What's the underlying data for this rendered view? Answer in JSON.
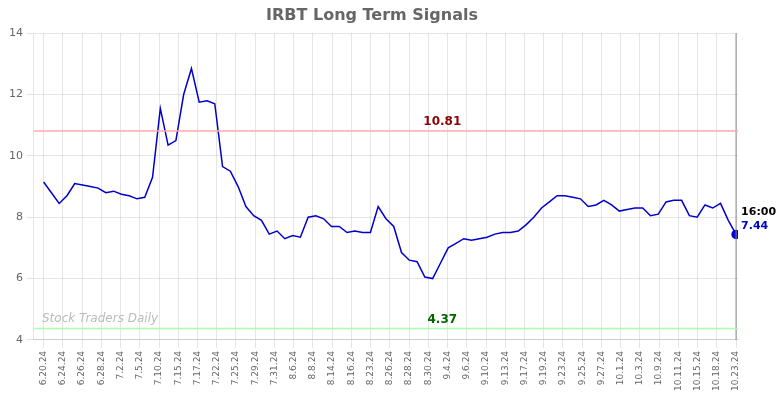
{
  "chart_data": {
    "type": "line",
    "title": "IRBT Long Term Signals",
    "x": [
      0,
      0.4045,
      0.809,
      1.2135,
      1.618,
      2.0225,
      2.427,
      2.8315,
      3.236,
      3.6404,
      4.0449,
      4.4494,
      4.8539,
      5.2584,
      5.6629,
      6.0674,
      6.4719,
      6.8764,
      7.2809,
      7.6854,
      8.0899,
      8.4944,
      8.8989,
      9.3034,
      9.7079,
      10.1124,
      10.5169,
      10.9213,
      11.3258,
      11.7303,
      12.1348,
      12.5393,
      12.9438,
      13.3483,
      13.7528,
      14.1573,
      14.5618,
      14.9663,
      15.3708,
      15.7753,
      16.1798,
      16.5843,
      16.9888,
      17.3933,
      17.7978,
      18.2022,
      18.6067,
      19.0112,
      19.4157,
      19.8202,
      20.2247,
      20.6292,
      21.0337,
      21.4382,
      21.8427,
      22.2472,
      22.6517,
      23.0562,
      23.4607,
      23.8652,
      24.2697,
      24.6742,
      25.0787,
      25.4831,
      25.8876,
      26.2921,
      26.6966,
      27.1011,
      27.5056,
      27.9101,
      28.3146,
      28.7191,
      29.1236,
      29.5281,
      29.9326,
      30.3371,
      30.7416,
      31.1461,
      31.5506,
      31.9551,
      32.3596,
      32.764,
      33.1685,
      33.573,
      33.9775,
      34.382,
      34.7865,
      35.191,
      35.5955,
      36
    ],
    "values": [
      9.15,
      8.8,
      8.45,
      8.7,
      9.1,
      9.05,
      9.0,
      8.95,
      8.8,
      8.85,
      8.75,
      8.7,
      8.6,
      8.65,
      9.3,
      11.55,
      10.35,
      10.5,
      12.0,
      12.85,
      11.75,
      11.8,
      11.7,
      9.65,
      9.5,
      9.0,
      8.35,
      8.05,
      7.9,
      7.45,
      7.55,
      7.3,
      7.4,
      7.35,
      8.0,
      8.05,
      7.95,
      7.7,
      7.7,
      7.5,
      7.55,
      7.5,
      7.5,
      8.35,
      7.95,
      7.7,
      6.85,
      6.6,
      6.55,
      6.05,
      6.0,
      6.5,
      7.0,
      7.15,
      7.3,
      7.25,
      7.3,
      7.35,
      7.45,
      7.5,
      7.5,
      7.55,
      7.75,
      8.0,
      8.3,
      8.5,
      8.7,
      8.7,
      8.65,
      8.6,
      8.35,
      8.4,
      8.55,
      8.4,
      8.2,
      8.25,
      8.3,
      8.3,
      8.05,
      8.1,
      8.5,
      8.55,
      8.55,
      8.05,
      8.0,
      8.4,
      8.3,
      8.45,
      7.9,
      7.44
    ],
    "color": "#0000cc",
    "xlim": [
      -0.5,
      36.1
    ],
    "xticks": [
      {
        "value": 0,
        "label": "6.20.24"
      },
      {
        "value": 1,
        "label": "6.24.24"
      },
      {
        "value": 2,
        "label": "6.26.24"
      },
      {
        "value": 3,
        "label": "6.28.24"
      },
      {
        "value": 4,
        "label": "7.2.24"
      },
      {
        "value": 5,
        "label": "7.5.24"
      },
      {
        "value": 6,
        "label": "7.10.24"
      },
      {
        "value": 7,
        "label": "7.15.24"
      },
      {
        "value": 8,
        "label": "7.17.24"
      },
      {
        "value": 9,
        "label": "7.22.24"
      },
      {
        "value": 10,
        "label": "7.25.24"
      },
      {
        "value": 11,
        "label": "7.29.24"
      },
      {
        "value": 12,
        "label": "7.31.24"
      },
      {
        "value": 13,
        "label": "8.6.24"
      },
      {
        "value": 14,
        "label": "8.8.24"
      },
      {
        "value": 15,
        "label": "8.14.24"
      },
      {
        "value": 16,
        "label": "8.16.24"
      },
      {
        "value": 17,
        "label": "8.23.24"
      },
      {
        "value": 18,
        "label": "8.26.24"
      },
      {
        "value": 19,
        "label": "8.28.24"
      },
      {
        "value": 20,
        "label": "8.30.24"
      },
      {
        "value": 21,
        "label": "9.4.24"
      },
      {
        "value": 22,
        "label": "9.6.24"
      },
      {
        "value": 23,
        "label": "9.10.24"
      },
      {
        "value": 24,
        "label": "9.13.24"
      },
      {
        "value": 25,
        "label": "9.17.24"
      },
      {
        "value": 26,
        "label": "9.19.24"
      },
      {
        "value": 27,
        "label": "9.23.24"
      },
      {
        "value": 28,
        "label": "9.25.24"
      },
      {
        "value": 29,
        "label": "9.27.24"
      },
      {
        "value": 30,
        "label": "10.1.24"
      },
      {
        "value": 31,
        "label": "10.3.24"
      },
      {
        "value": 32,
        "label": "10.9.24"
      },
      {
        "value": 33,
        "label": "10.11.24"
      },
      {
        "value": 34,
        "label": "10.15.24"
      },
      {
        "value": 35,
        "label": "10.18.24"
      },
      {
        "value": 36,
        "label": "10.23.24"
      }
    ],
    "ylim": [
      4,
      14
    ],
    "yticks": [
      4,
      6,
      8,
      10,
      12,
      14
    ],
    "grid": true,
    "hlines": [
      {
        "value": 10.81,
        "label": "10.81",
        "color": "#ffaaaa",
        "label_color": "#8b0000"
      },
      {
        "value": 4.37,
        "label": "4.37",
        "color": "#aaffaa",
        "label_color": "#006400"
      }
    ],
    "vlines": [
      {
        "value": 36,
        "color": "#888888"
      }
    ],
    "last_point_labels": [
      {
        "text": "16:00",
        "color": "#000000"
      },
      {
        "text": "7.44",
        "color": "#0000cc"
      }
    ],
    "watermark": {
      "text": "Stock Traders Daily",
      "color": "#bbbbbb"
    }
  }
}
